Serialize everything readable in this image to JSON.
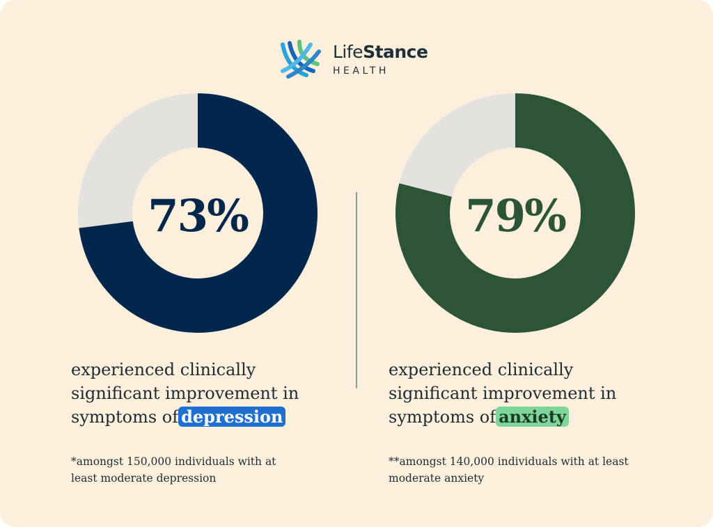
{
  "brand": {
    "name_part1": "Life",
    "name_part2": "Stance",
    "sub": "HEALTH"
  },
  "chart_data": [
    {
      "type": "pie",
      "variant": "donut",
      "value": 73,
      "label": "73%",
      "colors": {
        "value": "#03264C",
        "remainder": "#E3E2DF"
      }
    },
    {
      "type": "pie",
      "variant": "donut",
      "value": 79,
      "label": "79%",
      "colors": {
        "value": "#2C5538",
        "remainder": "#E3E2DF"
      }
    }
  ],
  "left": {
    "caption_line1": "experienced clinically",
    "caption_line2": "significant improvement in",
    "caption_line3_prefix": "symptoms of",
    "highlight": "depression",
    "footnote_line1": "*amongst 150,000 individuals with at",
    "footnote_line2": "least moderate depression"
  },
  "right": {
    "caption_line1": "experienced clinically",
    "caption_line2": "significant improvement in",
    "caption_line3_prefix": "symptoms of",
    "highlight": "anxiety",
    "footnote_line1": "**amongst 140,000 individuals with at least",
    "footnote_line2": "moderate anxiety"
  },
  "colors": {
    "background": "#FCEFDC",
    "navy": "#03264C",
    "green": "#2C5538",
    "highlight_blue": "#1F6FD0",
    "highlight_green": "#7ED69A"
  }
}
